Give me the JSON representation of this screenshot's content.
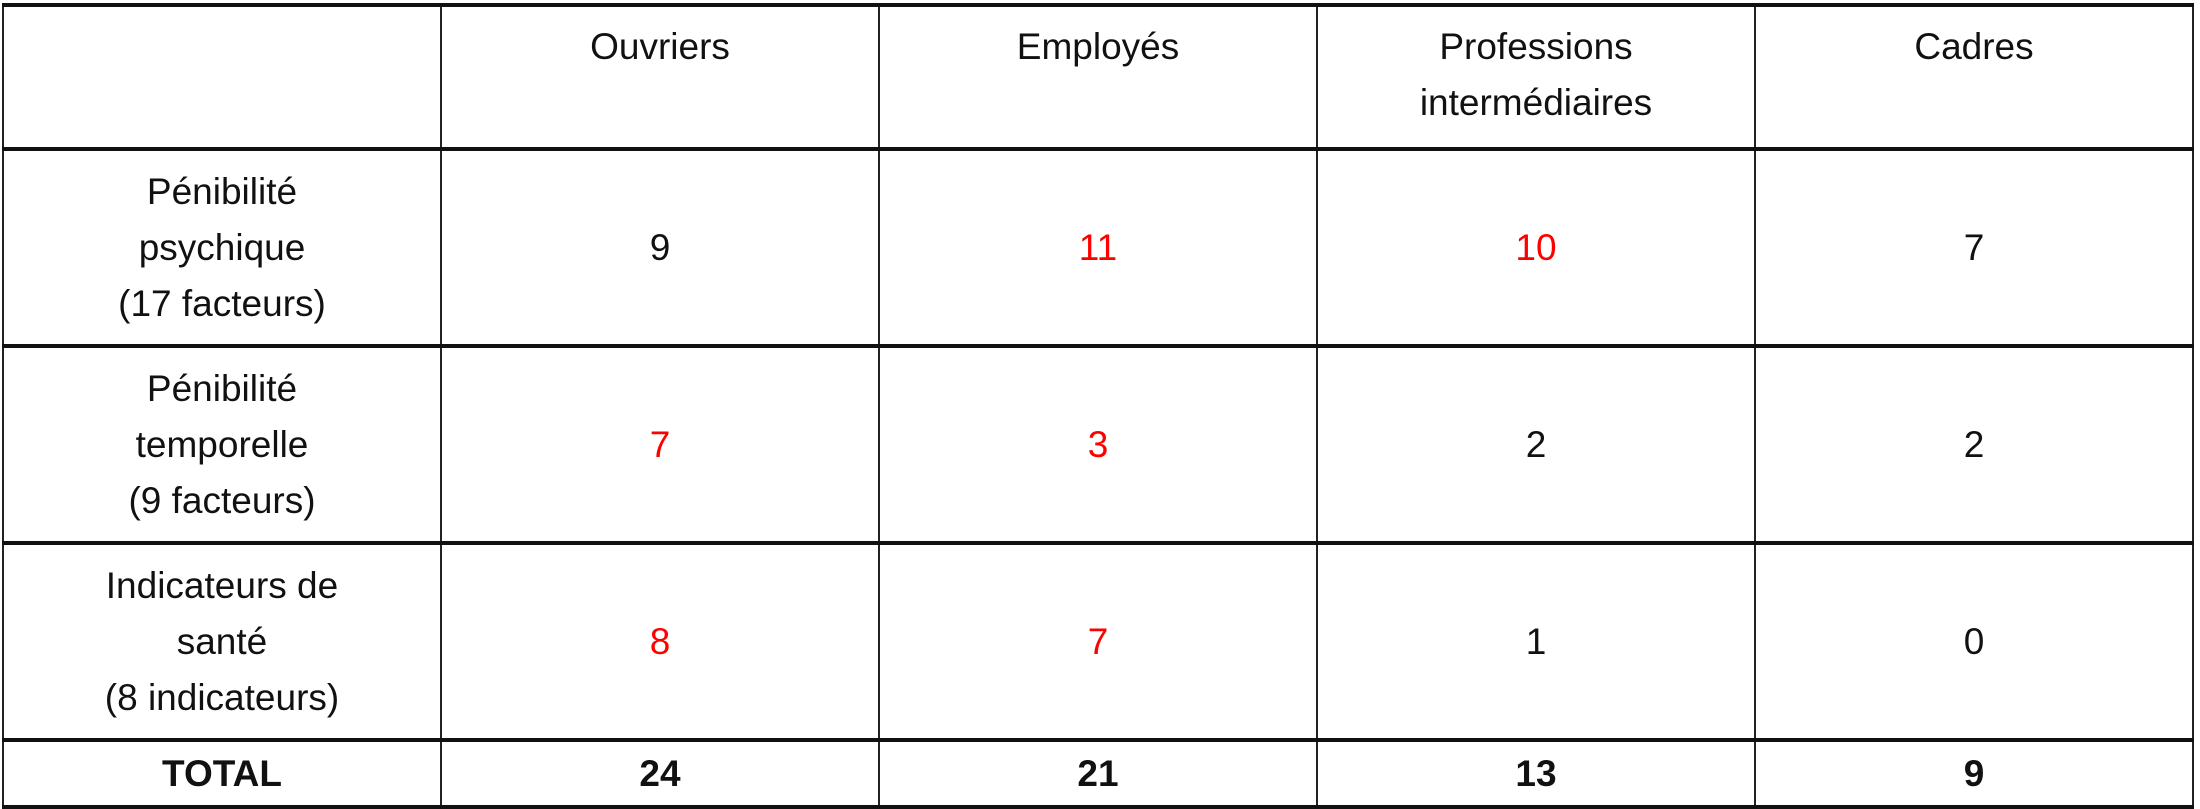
{
  "colors": {
    "highlight": "#ff0000",
    "text": "#111111"
  },
  "columns": [
    "",
    "Ouvriers",
    "Employés",
    "Professions intermédiaires",
    "Cadres"
  ],
  "column_lines": [
    [
      ""
    ],
    [
      "Ouvriers"
    ],
    [
      "Employés"
    ],
    [
      "Professions",
      "intermédiaires"
    ],
    [
      "Cadres"
    ]
  ],
  "rows": [
    {
      "label_lines": [
        "Pénibilité",
        "psychique",
        "(17 facteurs)"
      ],
      "values": [
        "9",
        "11",
        "10",
        "7"
      ],
      "highlighted": [
        false,
        true,
        true,
        false
      ]
    },
    {
      "label_lines": [
        "Pénibilité",
        "temporelle",
        "(9 facteurs)"
      ],
      "values": [
        "7",
        "3",
        "2",
        "2"
      ],
      "highlighted": [
        true,
        true,
        false,
        false
      ]
    },
    {
      "label_lines": [
        "Indicateurs de",
        "santé",
        "(8 indicateurs)"
      ],
      "values": [
        "8",
        "7",
        "1",
        "0"
      ],
      "highlighted": [
        true,
        true,
        false,
        false
      ]
    }
  ],
  "total": {
    "label": "TOTAL",
    "values": [
      "24",
      "21",
      "13",
      "9"
    ]
  }
}
